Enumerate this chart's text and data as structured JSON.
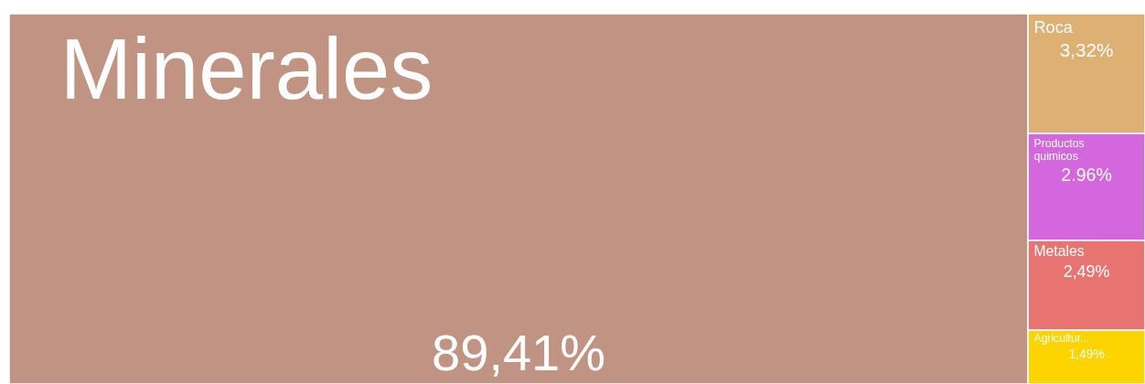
{
  "chart_data": {
    "type": "other",
    "categories": [
      "Minerales",
      "Roca",
      "Productos quimicos",
      "Metales",
      "Agricultur..."
    ],
    "values": [
      89.41,
      3.32,
      2.96,
      2.49,
      1.49
    ],
    "value_labels": [
      "89,41%",
      "3,32%",
      "2.96%",
      "2,49%",
      "1,49%"
    ],
    "colors": [
      "#c09383",
      "#dfb073",
      "#d467dd",
      "#e87472",
      "#fdd300"
    ]
  }
}
